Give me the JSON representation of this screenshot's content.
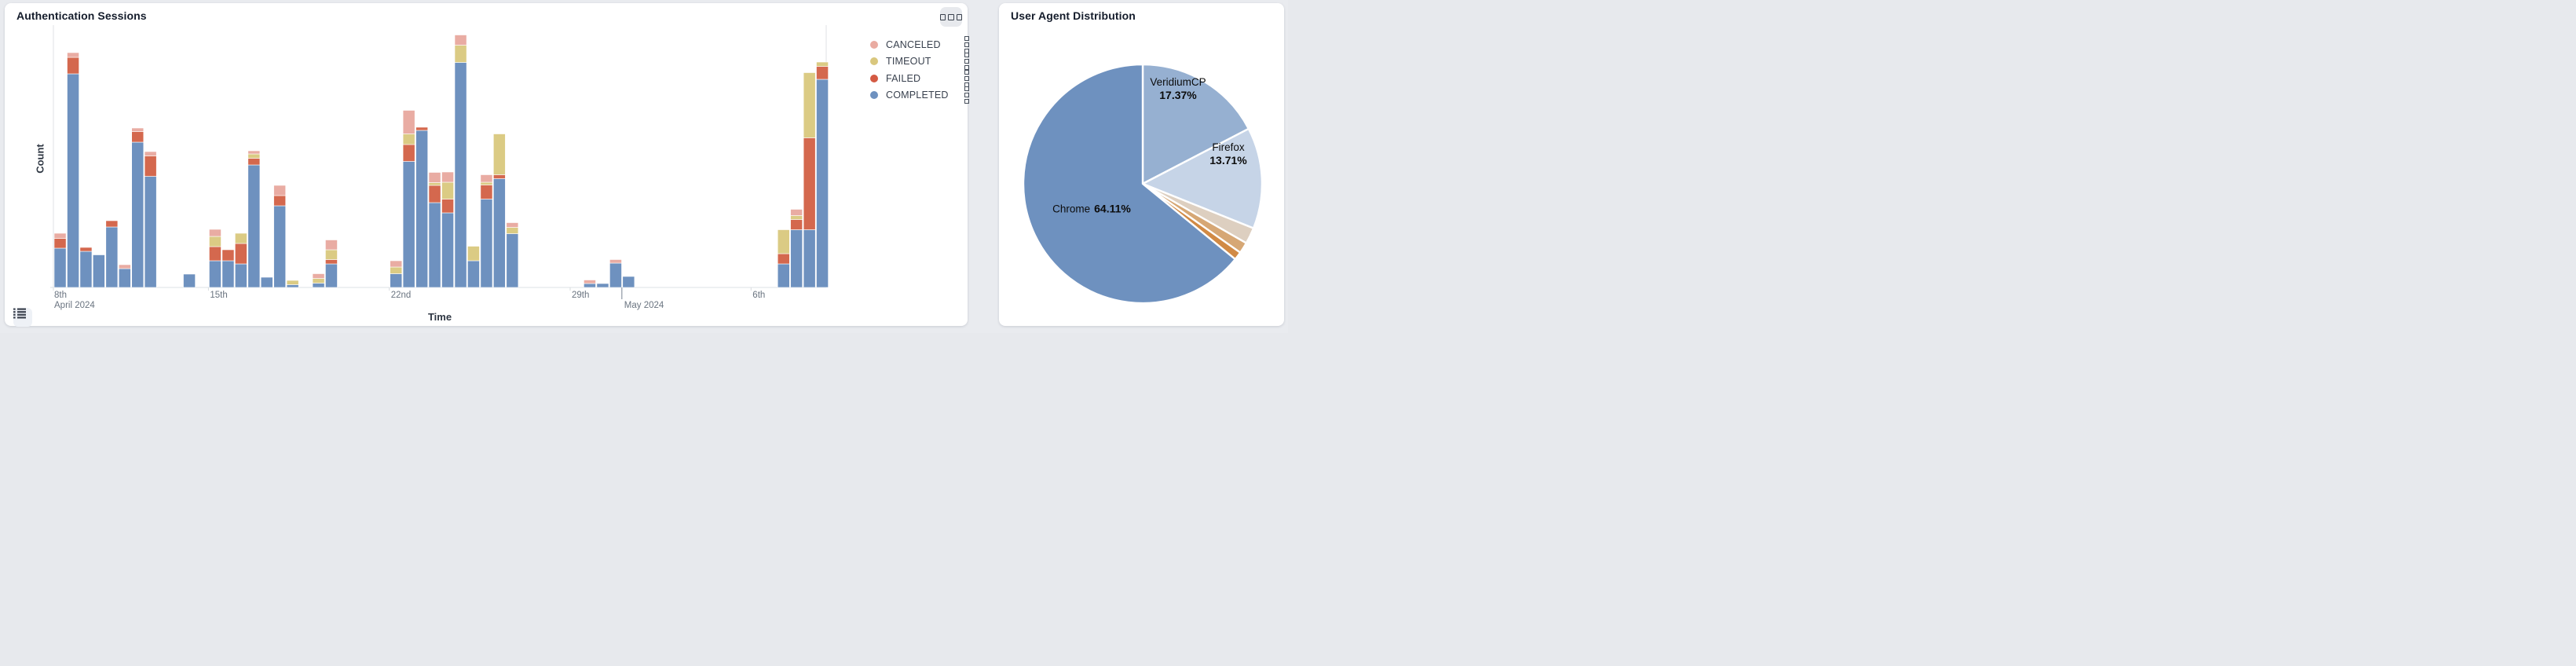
{
  "page": {
    "background": "#e9ebef"
  },
  "panels": {
    "auth": {
      "title": "Authentication Sessions",
      "menu_button_icon": "three-squares-icon",
      "list_button_icon": "list-icon"
    },
    "agents": {
      "title": "User Agent Distribution"
    }
  },
  "chart_data": [
    {
      "type": "bar",
      "variant": "stacked-time-histogram",
      "title": "Authentication Sessions",
      "xlabel": "Time",
      "ylabel": "Count",
      "grid": false,
      "y_axis_tick_labels": "none (axis unlabeled, values below are relative units)",
      "legend_position": "right-top",
      "legend": [
        {
          "label": "CANCELED",
          "color": "#e9aba1",
          "grip_icon": "drag-handle-squares-icon"
        },
        {
          "label": "TIMEOUT",
          "color": "#d9c77e",
          "grip_icon": "drag-handle-squares-icon"
        },
        {
          "label": "FAILED",
          "color": "#d45a43",
          "grip_icon": "drag-handle-squares-icon"
        },
        {
          "label": "COMPLETED",
          "color": "#6e91bf",
          "grip_icon": "drag-handle-squares-icon"
        }
      ],
      "series_colors": {
        "completed": "#6e91bf",
        "failed": "#d4684e",
        "timeout": "#dbcb84",
        "canceled": "#e9aca3"
      },
      "stack_order_bottom_to_top": [
        "completed",
        "failed",
        "timeout",
        "canceled"
      ],
      "x_start_label": {
        "label": "8th",
        "sub": "April 2024"
      },
      "x_ticks": [
        {
          "label": "15th",
          "day": 6
        },
        {
          "label": "22nd",
          "day": 13
        },
        {
          "label": "29th",
          "day": 20
        },
        {
          "label": "May 2024",
          "day": 22,
          "major": true,
          "second_row": true
        },
        {
          "label": "6th",
          "day": 27
        }
      ],
      "bin_hours": 12,
      "bars": [
        {
          "slot": 0,
          "t": "Apr 9 AM",
          "completed": 10.0,
          "failed": 2.5,
          "timeout": 0,
          "canceled": 1.3
        },
        {
          "slot": 1,
          "t": "Apr 9 PM",
          "completed": 54.4,
          "failed": 4.2,
          "timeout": 0,
          "canceled": 1.2
        },
        {
          "slot": 2,
          "t": "Apr 10 AM",
          "completed": 9.2,
          "failed": 1.0,
          "timeout": 0,
          "canceled": 0
        },
        {
          "slot": 3,
          "t": "Apr 10 PM",
          "completed": 8.3,
          "failed": 0,
          "timeout": 0,
          "canceled": 0
        },
        {
          "slot": 4,
          "t": "Apr 11 AM",
          "completed": 15.4,
          "failed": 1.6,
          "timeout": 0,
          "canceled": 0
        },
        {
          "slot": 5,
          "t": "Apr 11 PM",
          "completed": 4.8,
          "failed": 0,
          "timeout": 0,
          "canceled": 1.0
        },
        {
          "slot": 6,
          "t": "Apr 12 AM",
          "completed": 37.0,
          "failed": 2.7,
          "timeout": 0,
          "canceled": 0.9
        },
        {
          "slot": 7,
          "t": "Apr 12 PM",
          "completed": 28.3,
          "failed": 5.2,
          "timeout": 0,
          "canceled": 1.1
        },
        {
          "slot": 10,
          "t": "Apr 14 AM",
          "completed": 3.4,
          "failed": 0,
          "timeout": 0,
          "canceled": 0
        },
        {
          "slot": 12,
          "t": "Apr 15 AM",
          "completed": 6.8,
          "failed": 3.6,
          "timeout": 2.6,
          "canceled": 1.8
        },
        {
          "slot": 13,
          "t": "Apr 15 PM",
          "completed": 6.8,
          "failed": 2.8,
          "timeout": 0,
          "canceled": 0
        },
        {
          "slot": 14,
          "t": "Apr 16 AM",
          "completed": 6.0,
          "failed": 5.2,
          "timeout": 2.6,
          "canceled": 0
        },
        {
          "slot": 15,
          "t": "Apr 16 PM",
          "completed": 31.2,
          "failed": 1.7,
          "timeout": 1.1,
          "canceled": 0.8
        },
        {
          "slot": 16,
          "t": "Apr 17 AM",
          "completed": 2.6,
          "failed": 0,
          "timeout": 0,
          "canceled": 0
        },
        {
          "slot": 17,
          "t": "Apr 17 PM",
          "completed": 20.8,
          "failed": 2.6,
          "timeout": 0,
          "canceled": 2.6
        },
        {
          "slot": 18,
          "t": "Apr 18 AM",
          "completed": 0.7,
          "failed": 0,
          "timeout": 1.1,
          "canceled": 0
        },
        {
          "slot": 20,
          "t": "Apr 19 AM",
          "completed": 1.1,
          "failed": 0,
          "timeout": 1.2,
          "canceled": 1.2
        },
        {
          "slot": 21,
          "t": "Apr 19 PM",
          "completed": 6.0,
          "failed": 1.1,
          "timeout": 2.5,
          "canceled": 2.5
        },
        {
          "slot": 26,
          "t": "Apr 22 AM",
          "completed": 3.5,
          "failed": 0,
          "timeout": 1.7,
          "canceled": 1.6
        },
        {
          "slot": 27,
          "t": "Apr 22 PM",
          "completed": 32.1,
          "failed": 4.3,
          "timeout": 2.7,
          "canceled": 6.0
        },
        {
          "slot": 28,
          "t": "Apr 23 AM",
          "completed": 40.0,
          "failed": 0.8,
          "timeout": 0,
          "canceled": 0
        },
        {
          "slot": 29,
          "t": "Apr 23 PM",
          "completed": 21.6,
          "failed": 4.4,
          "timeout": 0.7,
          "canceled": 2.6
        },
        {
          "slot": 30,
          "t": "Apr 24 AM",
          "completed": 19.0,
          "failed": 3.5,
          "timeout": 4.3,
          "canceled": 2.6
        },
        {
          "slot": 31,
          "t": "Apr 24 PM",
          "completed": 57.3,
          "failed": 0,
          "timeout": 4.4,
          "canceled": 2.6
        },
        {
          "slot": 32,
          "t": "Apr 25 AM",
          "completed": 6.8,
          "failed": 0,
          "timeout": 3.7,
          "canceled": 0
        },
        {
          "slot": 33,
          "t": "Apr 25 PM",
          "completed": 22.5,
          "failed": 3.6,
          "timeout": 0.7,
          "canceled": 1.9
        },
        {
          "slot": 34,
          "t": "Apr 26 AM",
          "completed": 27.7,
          "failed": 1.0,
          "timeout": 10.4,
          "canceled": 0
        },
        {
          "slot": 35,
          "t": "Apr 26 PM",
          "completed": 13.7,
          "failed": 0,
          "timeout": 1.6,
          "canceled": 1.2
        },
        {
          "slot": 41,
          "t": "Apr 29 PM",
          "completed": 1.0,
          "failed": 0,
          "timeout": 0,
          "canceled": 0.9
        },
        {
          "slot": 42,
          "t": "Apr 30 AM",
          "completed": 1.0,
          "failed": 0,
          "timeout": 0,
          "canceled": 0
        },
        {
          "slot": 43,
          "t": "Apr 30 PM",
          "completed": 6.2,
          "failed": 0,
          "timeout": 0,
          "canceled": 0.9
        },
        {
          "slot": 44,
          "t": "May 1 AM",
          "completed": 2.8,
          "failed": 0,
          "timeout": 0,
          "canceled": 0
        },
        {
          "slot": 56,
          "t": "May 7 AM",
          "completed": 6.0,
          "failed": 2.6,
          "timeout": 6.1,
          "canceled": 0
        },
        {
          "slot": 57,
          "t": "May 7 PM",
          "completed": 14.7,
          "failed": 2.6,
          "timeout": 1.0,
          "canceled": 1.6
        },
        {
          "slot": 58,
          "t": "May 8 AM",
          "completed": 14.7,
          "failed": 23.4,
          "timeout": 16.6,
          "canceled": 0
        },
        {
          "slot": 59,
          "t": "May 8 PM",
          "completed": 53.0,
          "failed": 3.3,
          "timeout": 1.1,
          "canceled": 0
        }
      ]
    },
    {
      "type": "pie",
      "title": "User Agent Distribution",
      "start_angle_deg": 0,
      "direction": "clockwise",
      "slices": [
        {
          "label": "VeridiumCP",
          "pct": 17.37,
          "color": "#96b0d1",
          "pct_label": "17.37%"
        },
        {
          "label": "Firefox",
          "pct": 13.71,
          "color": "#c6d4e7",
          "pct_label": "13.71%"
        },
        {
          "label": "",
          "pct": 2.2,
          "color": "#ddcfc0",
          "pct_label": ""
        },
        {
          "label": "",
          "pct": 1.5,
          "color": "#d6a775",
          "pct_label": ""
        },
        {
          "label": "",
          "pct": 1.11,
          "color": "#d18a45",
          "pct_label": ""
        },
        {
          "label": "Chrome",
          "pct": 64.11,
          "color": "#6e91bf",
          "pct_label": "64.11%"
        }
      ]
    }
  ]
}
